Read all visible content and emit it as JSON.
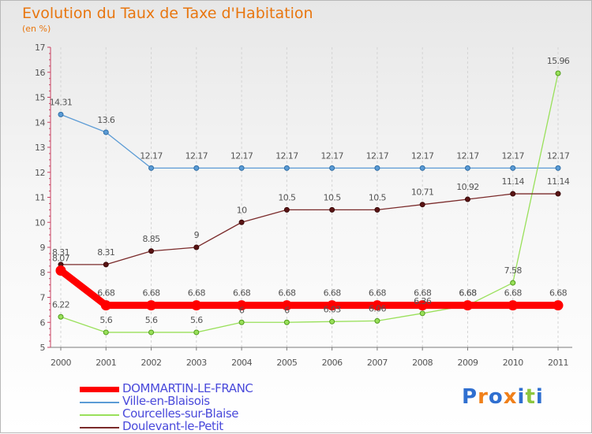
{
  "chart_data": {
    "type": "line",
    "title": "Evolution du Taux de Taxe d'Habitation",
    "subtitle": "(en %)",
    "x": [
      "2000",
      "2001",
      "2002",
      "2003",
      "2004",
      "2005",
      "2006",
      "2007",
      "2008",
      "2009",
      "2010",
      "2011"
    ],
    "ylim": [
      5,
      17
    ],
    "yticks": [
      "5",
      "6",
      "7",
      "8",
      "9",
      "10",
      "11",
      "12",
      "13",
      "14",
      "15",
      "16",
      "17"
    ],
    "series": [
      {
        "name": "DOMMARTIN-LE-FRANC",
        "color": "#ff0000",
        "values": [
          8.07,
          6.68,
          6.68,
          6.68,
          6.68,
          6.68,
          6.68,
          6.68,
          6.68,
          6.68,
          6.68,
          6.68
        ],
        "labels": [
          "8.07",
          "6.68",
          "6.68",
          "6.68",
          "6.68",
          "6.68",
          "6.68",
          "6.68",
          "6.68",
          "6.68",
          "6.68",
          "6.68"
        ]
      },
      {
        "name": "Ville-en-Blaisois",
        "color": "#5b9bd5",
        "values": [
          14.31,
          13.6,
          12.17,
          12.17,
          12.17,
          12.17,
          12.17,
          12.17,
          12.17,
          12.17,
          12.17,
          12.17
        ],
        "labels": [
          "14.31",
          "13.6",
          "12.17",
          "12.17",
          "12.17",
          "12.17",
          "12.17",
          "12.17",
          "12.17",
          "12.17",
          "12.17",
          "12.17"
        ]
      },
      {
        "name": "Courcelles-sur-Blaise",
        "color": "#99e05a",
        "values": [
          6.22,
          5.6,
          5.6,
          5.6,
          6,
          6,
          6.03,
          6.06,
          6.36,
          6.68,
          7.58,
          15.96
        ],
        "labels": [
          "6.22",
          "5.6",
          "5.6",
          "5.6",
          "6",
          "6",
          "6.03",
          "6.06",
          "6.36",
          "6.68",
          "7.58",
          "15.96"
        ]
      },
      {
        "name": "Doulevant-le-Petit",
        "color": "#7a2a2a",
        "values": [
          8.31,
          8.31,
          8.85,
          9,
          10,
          10.5,
          10.5,
          10.5,
          10.71,
          10.92,
          11.14,
          11.14
        ],
        "labels": [
          "8.31",
          "8.31",
          "8.85",
          "9",
          "10",
          "10.5",
          "10.5",
          "10.5",
          "10.71",
          "10.92",
          "11.14",
          "11.14"
        ]
      }
    ]
  },
  "legend": {
    "items": [
      {
        "label": "DOMMARTIN-LE-FRANC",
        "color": "#ff0000"
      },
      {
        "label": "Ville-en-Blaisois",
        "color": "#5b9bd5"
      },
      {
        "label": "Courcelles-sur-Blaise",
        "color": "#99e05a"
      },
      {
        "label": "Doulevant-le-Petit",
        "color": "#7a2a2a"
      }
    ]
  },
  "logo": {
    "text": "Proxiti",
    "colors": [
      "#2f6fd0",
      "#f0801a",
      "#2f6fd0",
      "#f0801a",
      "#2f6fd0",
      "#8cc63f",
      "#2f6fd0"
    ]
  }
}
